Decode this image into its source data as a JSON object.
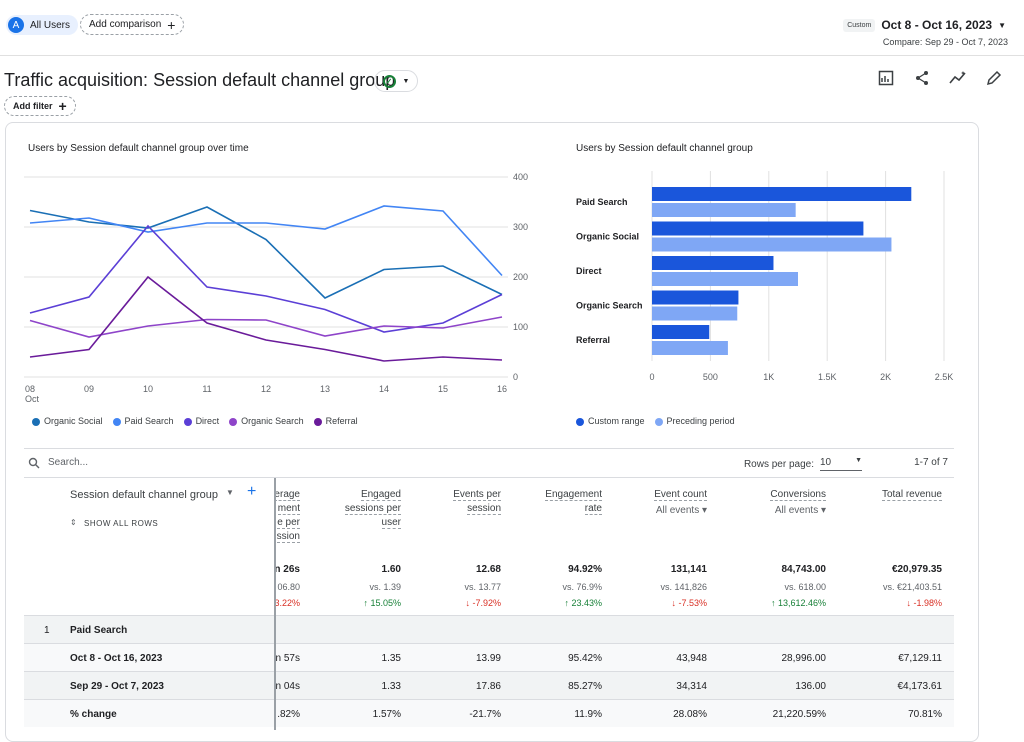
{
  "header": {
    "segment_initial": "A",
    "segment_label": "All Users",
    "add_comparison": "Add comparison",
    "custom_badge": "Custom",
    "date_range": "Oct 8 - Oct 16, 2023",
    "compare_range": "Compare: Sep 29 - Oct 7, 2023"
  },
  "page": {
    "title": "Traffic acquisition: Session default channel group",
    "add_filter": "Add filter"
  },
  "line_chart": {
    "title": "Users by Session default channel group over time",
    "legend": [
      "Organic Social",
      "Paid Search",
      "Direct",
      "Organic Search",
      "Referral"
    ],
    "x_labels": [
      "08",
      "09",
      "10",
      "11",
      "12",
      "13",
      "14",
      "15",
      "16"
    ],
    "x_sub": "Oct",
    "y_labels": [
      "400",
      "300",
      "200",
      "100",
      "0"
    ]
  },
  "bar_chart": {
    "title": "Users by Session default channel group",
    "legend": [
      "Custom range",
      "Preceding period"
    ],
    "x_labels": [
      "0",
      "500",
      "1K",
      "1.5K",
      "2K",
      "2.5K"
    ]
  },
  "chart_data": [
    {
      "type": "line",
      "title": "Users by Session default channel group over time",
      "x": [
        "08",
        "09",
        "10",
        "11",
        "12",
        "13",
        "14",
        "15",
        "16"
      ],
      "ylim": [
        0,
        400
      ],
      "series": [
        {
          "name": "Organic Social",
          "color": "#1a6fb5",
          "values": [
            333,
            310,
            298,
            340,
            275,
            158,
            215,
            222,
            165
          ]
        },
        {
          "name": "Paid Search",
          "color": "#4285f4",
          "values": [
            308,
            318,
            290,
            308,
            308,
            296,
            342,
            332,
            203
          ]
        },
        {
          "name": "Direct",
          "color": "#5b3fd6",
          "values": [
            128,
            160,
            302,
            180,
            162,
            135,
            90,
            108,
            165
          ]
        },
        {
          "name": "Organic Search",
          "color": "#8e44c9",
          "values": [
            113,
            80,
            102,
            115,
            114,
            82,
            102,
            98,
            120
          ]
        },
        {
          "name": "Referral",
          "color": "#6a1b9a",
          "values": [
            40,
            55,
            200,
            108,
            74,
            55,
            32,
            40,
            34
          ]
        }
      ]
    },
    {
      "type": "bar",
      "title": "Users by Session default channel group",
      "categories": [
        "Paid Search",
        "Organic Social",
        "Direct",
        "Organic Search",
        "Referral"
      ],
      "xlim": [
        0,
        2500
      ],
      "series": [
        {
          "name": "Custom range",
          "color": "#1a56db",
          "values": [
            2220,
            1810,
            1040,
            740,
            490
          ]
        },
        {
          "name": "Preceding period",
          "color": "#7fa7f5",
          "values": [
            1230,
            2050,
            1250,
            730,
            650
          ]
        }
      ]
    }
  ],
  "table": {
    "search_placeholder": "Search...",
    "rows_per_page_label": "Rows per page:",
    "rows_per_page": "10",
    "pager": "1-7 of 7",
    "dim_header": "Session default channel group",
    "show_all_rows": "SHOW ALL ROWS",
    "headers": [
      {
        "lines": [
          "erage",
          "ment",
          "e per",
          "ssion"
        ],
        "dd": ""
      },
      {
        "lines": [
          "Engaged",
          "sessions per",
          "user"
        ],
        "dd": ""
      },
      {
        "lines": [
          "Events per",
          "session"
        ],
        "dd": ""
      },
      {
        "lines": [
          "Engagement",
          "rate"
        ],
        "dd": ""
      },
      {
        "lines": [
          "Event count"
        ],
        "dd": "All events"
      },
      {
        "lines": [
          "Conversions"
        ],
        "dd": "All events"
      },
      {
        "lines": [
          "Total revenue"
        ],
        "dd": ""
      }
    ],
    "totals": [
      {
        "value": "n 26s",
        "vs": "06.80",
        "chg": "3.22%",
        "dir": "down"
      },
      {
        "value": "1.60",
        "vs": "vs. 1.39",
        "chg": "↑ 15.05%",
        "dir": "up"
      },
      {
        "value": "12.68",
        "vs": "vs. 13.77",
        "chg": "↓ -7.92%",
        "dir": "down"
      },
      {
        "value": "94.92%",
        "vs": "vs. 76.9%",
        "chg": "↑ 23.43%",
        "dir": "up"
      },
      {
        "value": "131,141",
        "vs": "vs. 141,826",
        "chg": "↓ -7.53%",
        "dir": "down"
      },
      {
        "value": "84,743.00",
        "vs": "vs. 618.00",
        "chg": "↑ 13,612.46%",
        "dir": "up"
      },
      {
        "value": "€20,979.35",
        "vs": "vs. €21,403.51",
        "chg": "↓ -1.98%",
        "dir": "down"
      }
    ],
    "group_index": "1",
    "group_name": "Paid Search",
    "rows": [
      {
        "label": "Oct 8 - Oct 16, 2023",
        "cells": [
          "n 57s",
          "1.35",
          "13.99",
          "95.42%",
          "43,948",
          "28,996.00",
          "€7,129.11"
        ]
      },
      {
        "label": "Sep 29 - Oct 7, 2023",
        "cells": [
          "n 04s",
          "1.33",
          "17.86",
          "85.27%",
          "34,314",
          "136.00",
          "€4,173.61"
        ]
      },
      {
        "label": "% change",
        "cells": [
          ".82%",
          "1.57%",
          "-21.7%",
          "11.9%",
          "28.08%",
          "21,220.59%",
          "70.81%"
        ]
      }
    ]
  }
}
